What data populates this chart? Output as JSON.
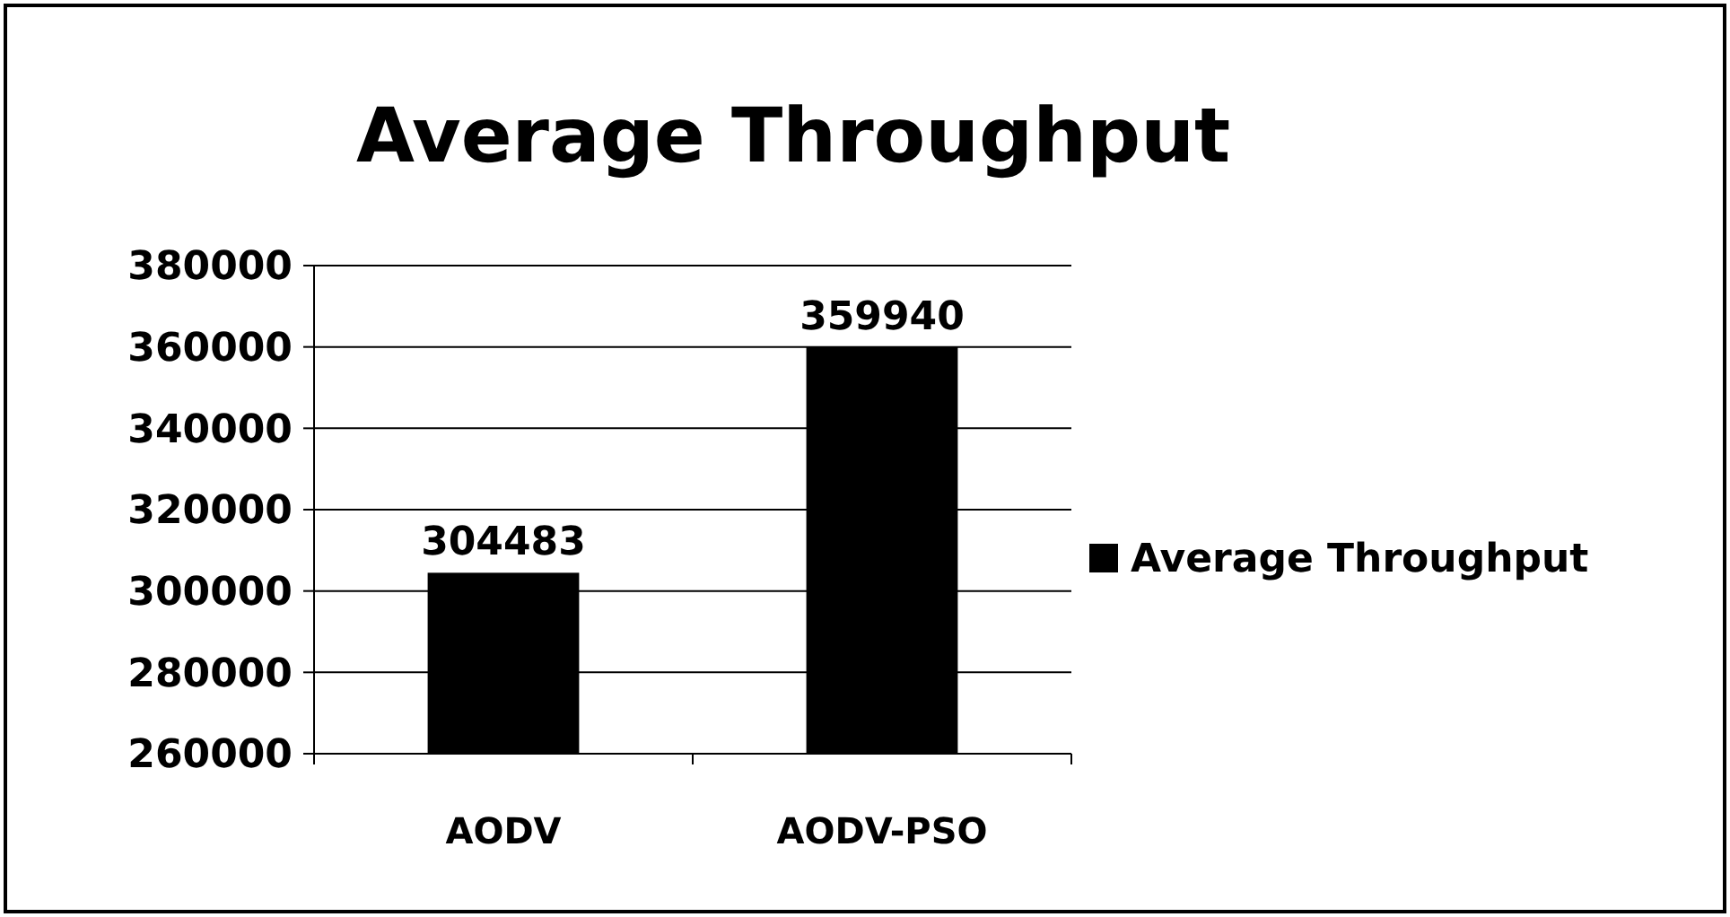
{
  "chart_data": {
    "type": "bar",
    "title": "Average Throughput",
    "categories": [
      "AODV",
      "AODV-PSO"
    ],
    "series": [
      {
        "name": "Average Throughput",
        "color": "#000000",
        "values": [
          304483,
          359940
        ]
      }
    ],
    "ylim": [
      260000,
      380000
    ],
    "yticks": [
      260000,
      280000,
      300000,
      320000,
      340000,
      360000,
      380000
    ],
    "grid": "y",
    "legend": "right",
    "data_labels": true
  }
}
